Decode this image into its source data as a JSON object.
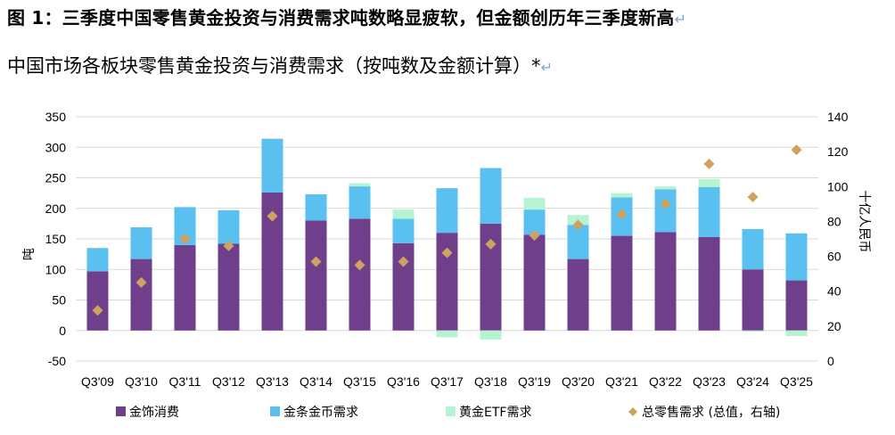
{
  "figure": {
    "title": "图 1：三季度中国零售黄金投资与消费需求吨数略显疲软，但金额创历年三季度新高",
    "subtitle": "中国市场各板块零售黄金投资与消费需求（按吨数及金额计算）*",
    "return_mark": "↵"
  },
  "chart_data": {
    "type": "bar",
    "stacked": true,
    "categories": [
      "Q3'09",
      "Q3'10",
      "Q3'11",
      "Q3'12",
      "Q3'13",
      "Q3'14",
      "Q3'15",
      "Q3'16",
      "Q3'17",
      "Q3'18",
      "Q3'19",
      "Q3'20",
      "Q3'21",
      "Q3'22",
      "Q3'23",
      "Q3'24",
      "Q3'25"
    ],
    "series": [
      {
        "name": "金饰消费",
        "axis": "left",
        "color": "#6f3f8c",
        "values": [
          97,
          117,
          140,
          142,
          226,
          180,
          183,
          143,
          160,
          175,
          157,
          117,
          155,
          161,
          153,
          100,
          82
        ]
      },
      {
        "name": "金条金币需求",
        "axis": "left",
        "color": "#59c0f0",
        "values": [
          38,
          52,
          62,
          55,
          88,
          43,
          53,
          40,
          73,
          91,
          41,
          56,
          63,
          70,
          82,
          66,
          77
        ]
      },
      {
        "name": "黄金ETF需求",
        "axis": "left",
        "color": "#b5f3d1",
        "values": [
          0,
          0,
          0,
          0,
          0,
          0,
          5,
          15,
          -11,
          -15,
          19,
          16,
          7,
          5,
          13,
          -2,
          -9
        ]
      },
      {
        "name": "总零售需求 (总值，右轴)",
        "axis": "right",
        "type": "scatter",
        "color": "#cfa25f",
        "values": [
          29,
          45,
          70,
          66,
          83,
          57,
          55,
          57,
          62,
          67,
          72,
          78,
          84,
          90,
          113,
          94,
          121
        ]
      }
    ],
    "ylabel": "吨",
    "y2label": "十亿人民币",
    "ylim": [
      -50,
      350
    ],
    "yticks": [
      -50,
      0,
      50,
      100,
      150,
      200,
      250,
      300,
      350
    ],
    "y2lim": [
      0,
      140
    ],
    "y2ticks": [
      0,
      20,
      40,
      60,
      80,
      100,
      120,
      140
    ],
    "grid": true,
    "legend_position": "bottom"
  }
}
